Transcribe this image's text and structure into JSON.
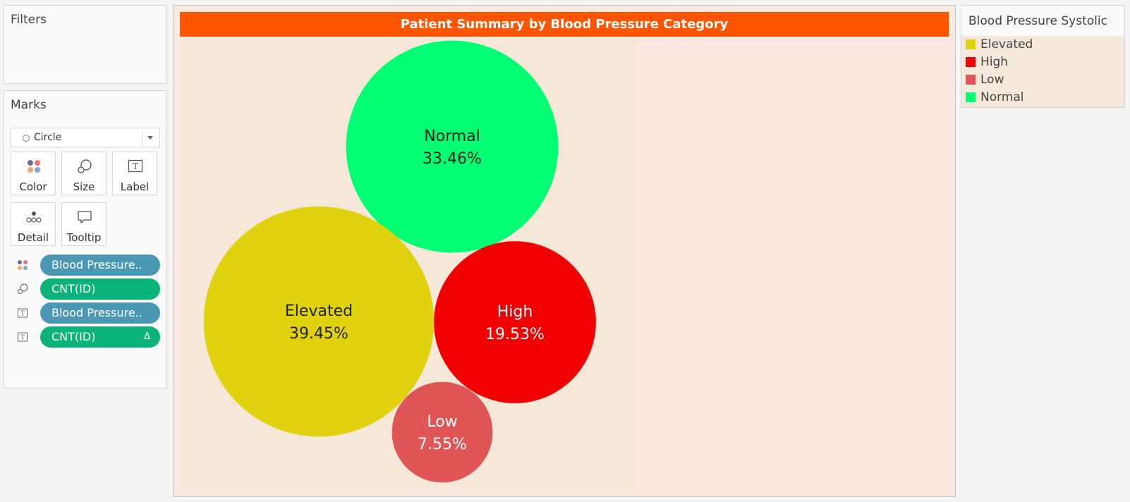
{
  "filters": {
    "title": "Filters"
  },
  "marks": {
    "title": "Marks",
    "mark_type": "Circle",
    "buttons": {
      "color": "Color",
      "size": "Size",
      "label": "Label",
      "detail": "Detail",
      "tooltip": "Tooltip"
    },
    "pills": [
      {
        "text": "Blood Pressure..",
        "icon": "color-icon"
      },
      {
        "text": "CNT(ID)",
        "icon": "size-icon"
      },
      {
        "text": "Blood Pressure..",
        "icon": "label-icon"
      },
      {
        "text": "CNT(ID)",
        "icon": "label-icon",
        "suffix": "Δ"
      }
    ]
  },
  "legend": {
    "title": "Blood Pressure Systolic",
    "items": [
      {
        "label": "Elevated",
        "color": "#e1d20f"
      },
      {
        "label": "High",
        "color": "#f00000"
      },
      {
        "label": "Low",
        "color": "#e05555"
      },
      {
        "label": "Normal",
        "color": "#00ff73"
      }
    ]
  },
  "chart_data": {
    "type": "bubble",
    "title": "Patient Summary by Blood Pressure Category",
    "size_measure": "CNT(ID)",
    "series": [
      {
        "name": "Normal",
        "value": "33.46%",
        "percent": 33.46,
        "color": "#00ff73",
        "label_color": "#222222"
      },
      {
        "name": "Elevated",
        "value": "39.45%",
        "percent": 39.45,
        "color": "#e1d20f",
        "label_color": "#222222"
      },
      {
        "name": "High",
        "value": "19.53%",
        "percent": 19.53,
        "color": "#f00000",
        "label_color": "#ffffff"
      },
      {
        "name": "Low",
        "value": "7.55%",
        "percent": 7.55,
        "color": "#e05555",
        "label_color": "#ffffff"
      }
    ]
  }
}
